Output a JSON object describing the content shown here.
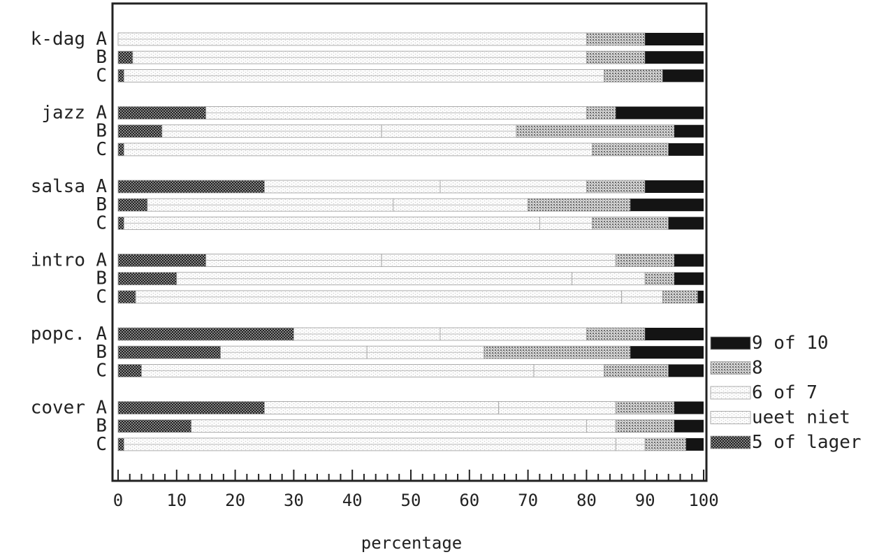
{
  "chart_data": {
    "type": "bar",
    "stacked": true,
    "orientation": "horizontal",
    "title": "",
    "xlabel": "percentage",
    "ylabel": "",
    "xlim": [
      0,
      100
    ],
    "x_ticks": [
      "0",
      "10",
      "20",
      "30",
      "40",
      "50",
      "60",
      "70",
      "80",
      "90",
      "100"
    ],
    "grid": false,
    "legend_position": "right",
    "segments": [
      {
        "name": "5 of lager",
        "color": "#6b6b6b",
        "pattern": "dense-check"
      },
      {
        "name": "weet niet",
        "color": "#fafafa",
        "pattern": "sparse-line"
      },
      {
        "name": "6 of 7",
        "color": "#f2f2f2",
        "pattern": "light-dots"
      },
      {
        "name": "8",
        "color": "#a8a8a8",
        "pattern": "medium-check"
      },
      {
        "name": "9 of 10",
        "color": "#141414",
        "pattern": "solid"
      }
    ],
    "legend_order": [
      "9 of 10",
      "8",
      "6 of 7",
      "weet niet",
      "5 of lager"
    ],
    "legend_labels": [
      "9 of 10",
      "8",
      "6 of 7",
      "ueet niet",
      "5 of lager"
    ],
    "groups": [
      {
        "name": "k-dag",
        "rows": [
          {
            "label": "A",
            "values": [
              0,
              80,
              0,
              10,
              10
            ]
          },
          {
            "label": "B",
            "values": [
              2.5,
              77.5,
              0,
              10,
              10
            ]
          },
          {
            "label": "C",
            "values": [
              1,
              82,
              0,
              10,
              7
            ]
          }
        ]
      },
      {
        "name": "jazz",
        "rows": [
          {
            "label": "A",
            "values": [
              15,
              65,
              0,
              5,
              15
            ]
          },
          {
            "label": "B",
            "values": [
              7.5,
              37.5,
              23,
              27,
              5
            ]
          },
          {
            "label": "C",
            "values": [
              1,
              80,
              0,
              13,
              6
            ]
          }
        ]
      },
      {
        "name": "salsa",
        "rows": [
          {
            "label": "A",
            "values": [
              25,
              30,
              25,
              10,
              10
            ]
          },
          {
            "label": "B",
            "values": [
              5,
              42,
              23,
              17.5,
              12.5
            ]
          },
          {
            "label": "C",
            "values": [
              1,
              71,
              9,
              13,
              6
            ]
          }
        ]
      },
      {
        "name": "intro",
        "rows": [
          {
            "label": "A",
            "values": [
              15,
              30,
              40,
              10,
              5
            ]
          },
          {
            "label": "B",
            "values": [
              10,
              67.5,
              12.5,
              5,
              5
            ]
          },
          {
            "label": "C",
            "values": [
              3,
              83,
              7,
              6,
              1
            ]
          }
        ]
      },
      {
        "name": "popc.",
        "rows": [
          {
            "label": "A",
            "values": [
              30,
              25,
              25,
              10,
              10
            ]
          },
          {
            "label": "B",
            "values": [
              17.5,
              25,
              20,
              25,
              12.5
            ]
          },
          {
            "label": "C",
            "values": [
              4,
              67,
              12,
              11,
              6
            ]
          }
        ]
      },
      {
        "name": "cover",
        "rows": [
          {
            "label": "A",
            "values": [
              25,
              40,
              20,
              10,
              5
            ]
          },
          {
            "label": "B",
            "values": [
              12.5,
              67.5,
              5,
              10,
              5
            ]
          },
          {
            "label": "C",
            "values": [
              1,
              84,
              5,
              7,
              3
            ]
          }
        ]
      }
    ]
  }
}
